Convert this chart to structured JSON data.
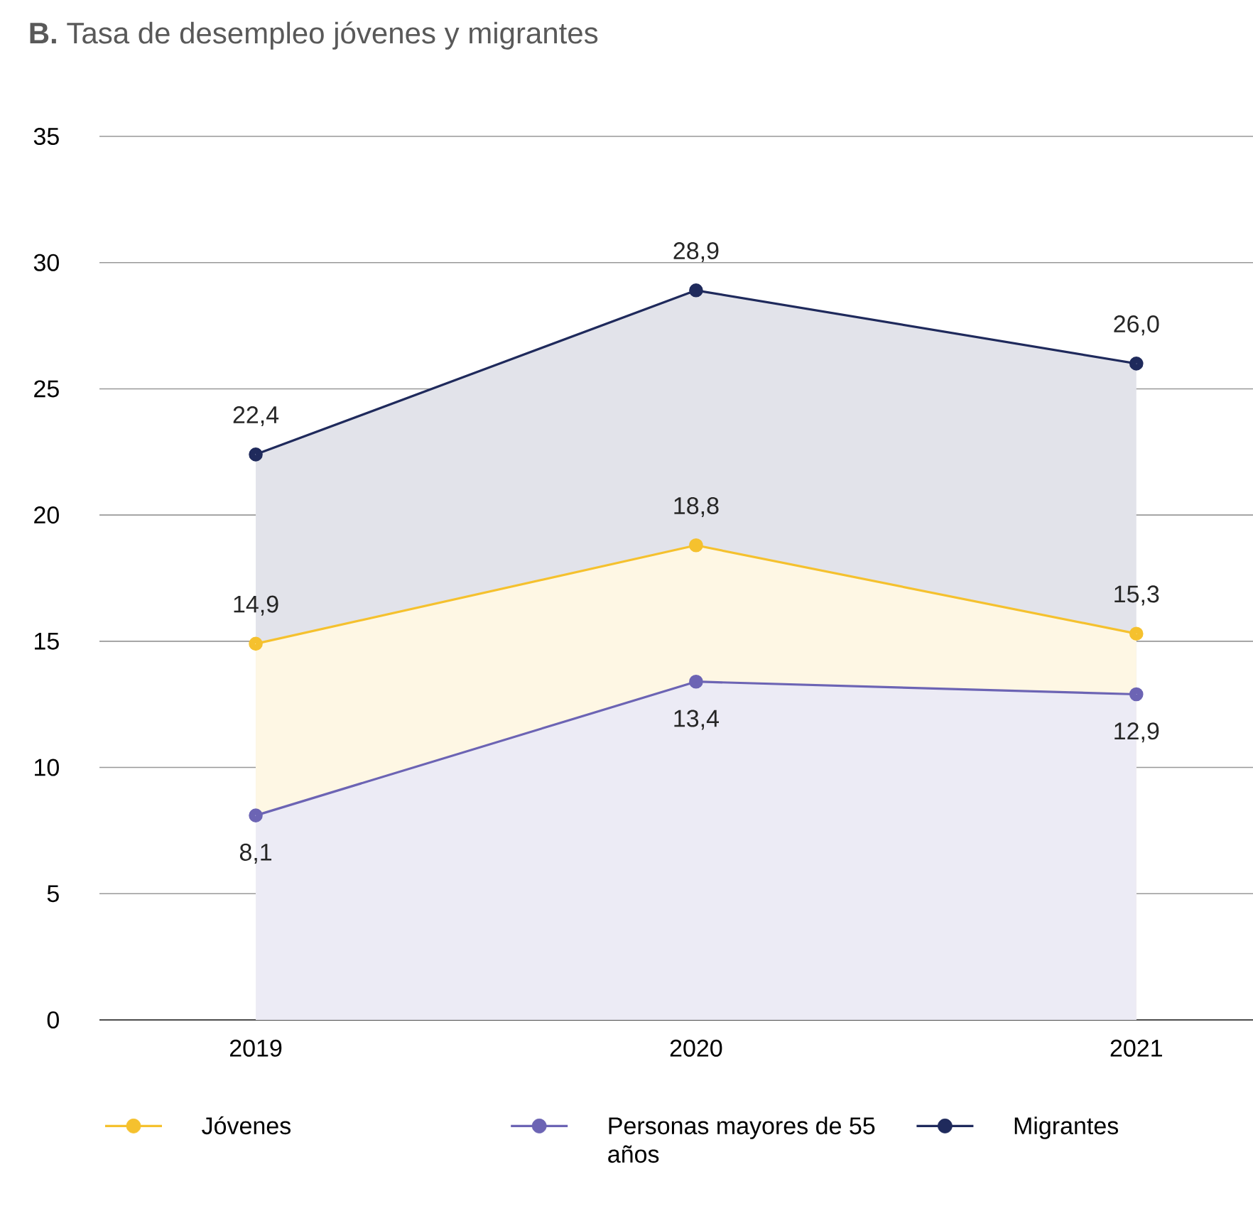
{
  "chart_data": {
    "type": "area",
    "title": "**B.** Tasa de desempleo jóvenes y migrantes",
    "categories": [
      "2019",
      "2020",
      "2021"
    ],
    "series": [
      {
        "name": "Jóvenes",
        "color": "#f5c12e",
        "values": [
          14.9,
          18.8,
          15.3
        ],
        "value_labels": [
          "14,9",
          "18,8",
          "15,3"
        ]
      },
      {
        "name": "Personas mayores de 55 años",
        "color": "#6c64b4",
        "values": [
          8.1,
          13.4,
          12.9
        ],
        "value_labels": [
          "8,1",
          "13,4",
          "12,9"
        ]
      },
      {
        "name": "Migrantes",
        "color": "#1f2a5c",
        "values": [
          22.4,
          28.9,
          26.0
        ],
        "value_labels": [
          "22,4",
          "28,9",
          "26,0"
        ]
      }
    ],
    "ylim": [
      0,
      35
    ],
    "yticks": [
      0,
      5,
      10,
      15,
      20,
      25,
      30,
      35
    ],
    "grid": "y",
    "legend": "bottom",
    "marker": "circle",
    "line_style": "solid"
  }
}
